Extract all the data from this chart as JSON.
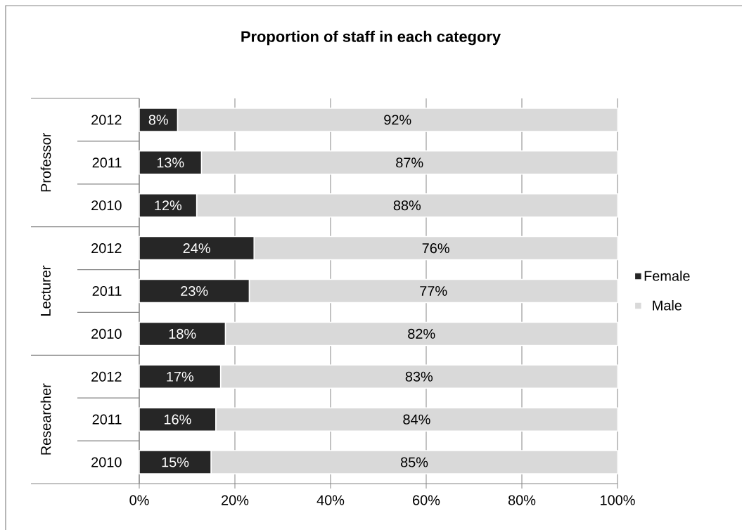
{
  "chart_data": {
    "type": "bar",
    "orientation": "horizontal",
    "stacked": true,
    "title": "Proportion of staff in each category",
    "categories": [
      "2012",
      "2011",
      "2010",
      "2012",
      "2011",
      "2010",
      "2012",
      "2011",
      "2010"
    ],
    "annotations": [
      "Professor",
      "Lecturer",
      "Researcher"
    ],
    "series": [
      {
        "name": "Female",
        "color": "#262626",
        "values": [
          8,
          13,
          12,
          24,
          23,
          18,
          17,
          16,
          15
        ],
        "value_labels": [
          "8%",
          "13%",
          "12%",
          "24%",
          "23%",
          "18%",
          "17%",
          "16%",
          "15%"
        ]
      },
      {
        "name": "Male",
        "color": "#d9d9d9",
        "values": [
          92,
          87,
          88,
          76,
          77,
          82,
          83,
          84,
          85
        ],
        "value_labels": [
          "92%",
          "87%",
          "88%",
          "76%",
          "77%",
          "82%",
          "83%",
          "84%",
          "85%"
        ]
      }
    ],
    "xlim": [
      0,
      100
    ],
    "xticks": [
      {
        "value": 0,
        "label": "0%"
      },
      {
        "value": 20,
        "label": "20%"
      },
      {
        "value": 40,
        "label": "40%"
      },
      {
        "value": 60,
        "label": "60%"
      },
      {
        "value": 80,
        "label": "80%"
      },
      {
        "value": 100,
        "label": "100%"
      }
    ],
    "grid": "x",
    "legend": "right"
  }
}
